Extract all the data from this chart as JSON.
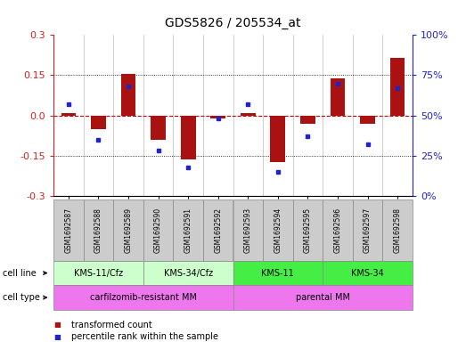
{
  "title": "GDS5826 / 205534_at",
  "samples": [
    "GSM1692587",
    "GSM1692588",
    "GSM1692589",
    "GSM1692590",
    "GSM1692591",
    "GSM1692592",
    "GSM1692593",
    "GSM1692594",
    "GSM1692595",
    "GSM1692596",
    "GSM1692597",
    "GSM1692598"
  ],
  "transformed_count": [
    0.01,
    -0.05,
    0.155,
    -0.09,
    -0.165,
    -0.01,
    0.01,
    -0.175,
    -0.03,
    0.14,
    -0.03,
    0.215
  ],
  "percentile_rank": [
    57,
    35,
    68,
    28,
    18,
    48,
    57,
    15,
    37,
    70,
    32,
    67
  ],
  "ylim": [
    -0.3,
    0.3
  ],
  "yticks_left": [
    -0.3,
    -0.15,
    0.0,
    0.15,
    0.3
  ],
  "yticks_right": [
    0,
    25,
    50,
    75,
    100
  ],
  "bar_color": "#aa1111",
  "dot_color": "#2222cc",
  "hline_color": "#cc0000",
  "cell_line_colors": [
    "#ccffcc",
    "#ccffcc",
    "#44ee44",
    "#44ee44"
  ],
  "cell_type_color": "#ee77ee",
  "sample_box_color": "#cccccc",
  "cell_line_groups": [
    {
      "label": "KMS-11/Cfz",
      "start": 0,
      "end": 3
    },
    {
      "label": "KMS-34/Cfz",
      "start": 3,
      "end": 6
    },
    {
      "label": "KMS-11",
      "start": 6,
      "end": 9
    },
    {
      "label": "KMS-34",
      "start": 9,
      "end": 12
    }
  ],
  "cell_type_groups": [
    {
      "label": "carfilzomib-resistant MM",
      "start": 0,
      "end": 6
    },
    {
      "label": "parental MM",
      "start": 6,
      "end": 12
    }
  ],
  "legend_items": [
    {
      "label": "transformed count",
      "color": "#aa1111"
    },
    {
      "label": "percentile rank within the sample",
      "color": "#2222cc"
    }
  ]
}
